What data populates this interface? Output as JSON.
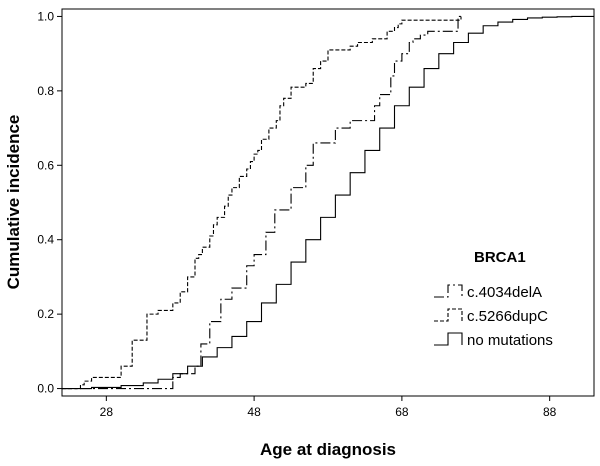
{
  "chart_data": {
    "type": "line",
    "subtype": "step",
    "xlabel": "Age at diagnosis",
    "ylabel": "Cumulative incidence",
    "xlim": [
      22,
      94
    ],
    "ylim": [
      -0.02,
      1.02
    ],
    "x_ticks": [
      "28",
      "48",
      "68",
      "88"
    ],
    "y_ticks": [
      "0.0",
      "0.2",
      "0.4",
      "0.6",
      "0.8",
      "1.0"
    ],
    "grid": false,
    "legend": {
      "title": "BRCA1",
      "placement": "right",
      "entries": [
        "c.4034delA",
        "c.5266dupC",
        "no mutations"
      ]
    },
    "series": [
      {
        "name": "c.4034delA",
        "line_style": "dash-dot",
        "x": [
          22,
          37,
          38,
          40,
          40.8,
          42,
          43.5,
          45,
          47,
          48,
          49.6,
          50.8,
          53,
          55,
          56,
          59,
          61,
          62.5,
          64.3,
          65,
          66.5,
          67,
          68,
          69,
          69.5,
          70.5,
          71.5,
          72,
          75,
          75.6,
          76
        ],
        "y": [
          0.0,
          0.03,
          0.04,
          0.06,
          0.12,
          0.18,
          0.24,
          0.27,
          0.33,
          0.36,
          0.42,
          0.48,
          0.54,
          0.6,
          0.66,
          0.7,
          0.72,
          0.72,
          0.76,
          0.79,
          0.84,
          0.88,
          0.9,
          0.93,
          0.94,
          0.95,
          0.96,
          0.96,
          0.96,
          1.0,
          1.0
        ]
      },
      {
        "name": "c.5266dupC",
        "line_style": "dashed",
        "x": [
          22,
          24.5,
          25,
          26,
          30,
          31.5,
          33.5,
          35,
          37,
          38,
          39,
          40,
          40.5,
          41,
          42,
          42.5,
          43,
          44,
          44.5,
          45,
          46,
          47,
          47.5,
          48,
          48.5,
          49,
          50,
          51,
          51.5,
          52,
          53,
          54,
          55,
          56,
          57,
          58,
          60,
          61,
          62,
          63,
          64,
          66,
          67,
          67.5,
          68,
          69,
          73,
          75.5,
          76
        ],
        "y": [
          0.0,
          0.01,
          0.02,
          0.03,
          0.06,
          0.13,
          0.2,
          0.21,
          0.23,
          0.26,
          0.3,
          0.35,
          0.36,
          0.38,
          0.41,
          0.44,
          0.46,
          0.49,
          0.52,
          0.54,
          0.57,
          0.59,
          0.61,
          0.63,
          0.64,
          0.67,
          0.7,
          0.72,
          0.76,
          0.78,
          0.81,
          0.81,
          0.82,
          0.86,
          0.88,
          0.91,
          0.91,
          0.92,
          0.93,
          0.93,
          0.94,
          0.96,
          0.97,
          0.98,
          0.99,
          0.99,
          0.99,
          0.99,
          1.0
        ]
      },
      {
        "name": "no mutations",
        "line_style": "solid",
        "x": [
          22,
          26,
          30,
          33,
          35,
          37,
          39,
          41,
          43,
          45,
          47,
          49,
          51,
          53,
          55,
          57,
          59,
          61,
          63,
          65,
          67,
          69,
          71,
          73,
          75,
          77,
          79,
          81,
          83,
          85,
          87,
          89,
          91,
          94
        ],
        "y": [
          0.0,
          0.003,
          0.008,
          0.015,
          0.025,
          0.04,
          0.06,
          0.085,
          0.11,
          0.14,
          0.18,
          0.23,
          0.28,
          0.34,
          0.4,
          0.46,
          0.52,
          0.58,
          0.64,
          0.7,
          0.76,
          0.81,
          0.86,
          0.9,
          0.93,
          0.955,
          0.975,
          0.985,
          0.992,
          0.996,
          0.998,
          0.999,
          1.0,
          1.0
        ]
      }
    ]
  }
}
